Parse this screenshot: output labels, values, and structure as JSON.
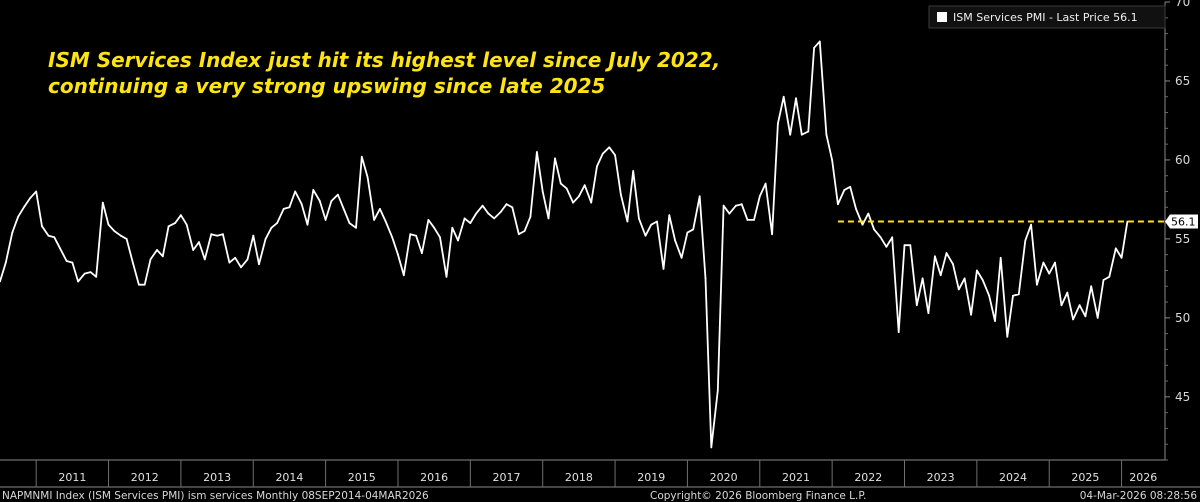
{
  "chart_data": {
    "type": "line",
    "annotation": [
      "ISM Services Index just hit its highest level since July 2022,",
      "continuing a very strong upswing since late 2025"
    ],
    "legend": {
      "label": "ISM Services PMI - Last Price 56.1",
      "position": "top-right"
    },
    "last_value_label": "56.1",
    "reference_line": {
      "value": 56.1,
      "from": 2022.08,
      "color": "#ffe414",
      "style": "dashed"
    },
    "ylim": [
      41,
      70
    ],
    "yticks": [
      45,
      50,
      55,
      60,
      65,
      70
    ],
    "xlim": [
      2010.5,
      2026.6
    ],
    "xticks": [
      "2011",
      "2012",
      "2013",
      "2014",
      "2015",
      "2016",
      "2017",
      "2018",
      "2019",
      "2020",
      "2021",
      "2022",
      "2023",
      "2024",
      "2025",
      "2026"
    ],
    "grid": false,
    "line_color": "#ffffff",
    "series": [
      {
        "values": [
          [
            2010.5,
            52.3
          ],
          [
            2010.58,
            53.5
          ],
          [
            2010.67,
            55.4
          ],
          [
            2010.75,
            56.4
          ],
          [
            2010.83,
            57.0
          ],
          [
            2010.92,
            57.6
          ],
          [
            2011.0,
            58.0
          ],
          [
            2011.08,
            55.8
          ],
          [
            2011.17,
            55.2
          ],
          [
            2011.25,
            55.1
          ],
          [
            2011.33,
            54.4
          ],
          [
            2011.42,
            53.6
          ],
          [
            2011.5,
            53.5
          ],
          [
            2011.58,
            52.3
          ],
          [
            2011.67,
            52.8
          ],
          [
            2011.75,
            52.9
          ],
          [
            2011.83,
            52.6
          ],
          [
            2011.92,
            57.3
          ],
          [
            2012.0,
            55.9
          ],
          [
            2012.08,
            55.5
          ],
          [
            2012.17,
            55.2
          ],
          [
            2012.25,
            55.0
          ],
          [
            2012.33,
            53.6
          ],
          [
            2012.42,
            52.1
          ],
          [
            2012.5,
            52.1
          ],
          [
            2012.58,
            53.7
          ],
          [
            2012.67,
            54.3
          ],
          [
            2012.75,
            53.9
          ],
          [
            2012.83,
            55.8
          ],
          [
            2012.92,
            56.0
          ],
          [
            2013.0,
            56.5
          ],
          [
            2013.08,
            55.9
          ],
          [
            2013.17,
            54.3
          ],
          [
            2013.25,
            54.8
          ],
          [
            2013.33,
            53.7
          ],
          [
            2013.42,
            55.3
          ],
          [
            2013.5,
            55.2
          ],
          [
            2013.58,
            55.3
          ],
          [
            2013.67,
            53.5
          ],
          [
            2013.75,
            53.8
          ],
          [
            2013.83,
            53.2
          ],
          [
            2013.92,
            53.7
          ],
          [
            2014.0,
            55.2
          ],
          [
            2014.08,
            53.4
          ],
          [
            2014.17,
            55.0
          ],
          [
            2014.25,
            55.7
          ],
          [
            2014.33,
            56.0
          ],
          [
            2014.42,
            56.9
          ],
          [
            2014.5,
            57.0
          ],
          [
            2014.58,
            58.0
          ],
          [
            2014.67,
            57.2
          ],
          [
            2014.75,
            55.9
          ],
          [
            2014.83,
            58.1
          ],
          [
            2014.92,
            57.4
          ],
          [
            2015.0,
            56.2
          ],
          [
            2015.08,
            57.4
          ],
          [
            2015.17,
            57.8
          ],
          [
            2015.25,
            56.9
          ],
          [
            2015.33,
            56.0
          ],
          [
            2015.42,
            55.7
          ],
          [
            2015.5,
            60.2
          ],
          [
            2015.58,
            58.9
          ],
          [
            2015.67,
            56.2
          ],
          [
            2015.75,
            56.9
          ],
          [
            2015.83,
            56.1
          ],
          [
            2015.92,
            55.1
          ],
          [
            2016.0,
            54.0
          ],
          [
            2016.08,
            52.7
          ],
          [
            2016.17,
            55.3
          ],
          [
            2016.25,
            55.2
          ],
          [
            2016.33,
            54.1
          ],
          [
            2016.42,
            56.2
          ],
          [
            2016.5,
            55.7
          ],
          [
            2016.58,
            55.1
          ],
          [
            2016.67,
            52.6
          ],
          [
            2016.75,
            55.7
          ],
          [
            2016.83,
            54.9
          ],
          [
            2016.92,
            56.3
          ],
          [
            2017.0,
            56.0
          ],
          [
            2017.08,
            56.6
          ],
          [
            2017.17,
            57.1
          ],
          [
            2017.25,
            56.6
          ],
          [
            2017.33,
            56.3
          ],
          [
            2017.42,
            56.7
          ],
          [
            2017.5,
            57.2
          ],
          [
            2017.58,
            57.0
          ],
          [
            2017.67,
            55.3
          ],
          [
            2017.75,
            55.5
          ],
          [
            2017.83,
            56.4
          ],
          [
            2017.92,
            60.5
          ],
          [
            2018.0,
            58.0
          ],
          [
            2018.08,
            56.3
          ],
          [
            2018.17,
            60.1
          ],
          [
            2018.25,
            58.5
          ],
          [
            2018.33,
            58.2
          ],
          [
            2018.42,
            57.3
          ],
          [
            2018.5,
            57.7
          ],
          [
            2018.58,
            58.4
          ],
          [
            2018.67,
            57.3
          ],
          [
            2018.75,
            59.6
          ],
          [
            2018.83,
            60.4
          ],
          [
            2018.92,
            60.8
          ],
          [
            2019.0,
            60.3
          ],
          [
            2019.08,
            57.8
          ],
          [
            2019.17,
            56.1
          ],
          [
            2019.25,
            59.3
          ],
          [
            2019.33,
            56.3
          ],
          [
            2019.42,
            55.2
          ],
          [
            2019.5,
            55.9
          ],
          [
            2019.58,
            56.1
          ],
          [
            2019.67,
            53.1
          ],
          [
            2019.75,
            56.5
          ],
          [
            2019.83,
            54.9
          ],
          [
            2019.92,
            53.8
          ],
          [
            2020.0,
            55.4
          ],
          [
            2020.08,
            55.6
          ],
          [
            2020.17,
            57.7
          ],
          [
            2020.25,
            52.5
          ],
          [
            2020.33,
            41.8
          ],
          [
            2020.42,
            45.4
          ],
          [
            2020.5,
            57.1
          ],
          [
            2020.58,
            56.6
          ],
          [
            2020.67,
            57.1
          ],
          [
            2020.75,
            57.2
          ],
          [
            2020.83,
            56.2
          ],
          [
            2020.92,
            56.2
          ],
          [
            2021.0,
            57.7
          ],
          [
            2021.08,
            58.5
          ],
          [
            2021.17,
            55.3
          ],
          [
            2021.25,
            62.3
          ],
          [
            2021.33,
            64.0
          ],
          [
            2021.42,
            61.6
          ],
          [
            2021.5,
            63.9
          ],
          [
            2021.58,
            61.6
          ],
          [
            2021.67,
            61.8
          ],
          [
            2021.75,
            67.1
          ],
          [
            2021.83,
            67.5
          ],
          [
            2021.92,
            61.6
          ],
          [
            2022.0,
            60.0
          ],
          [
            2022.08,
            57.2
          ],
          [
            2022.17,
            58.1
          ],
          [
            2022.25,
            58.3
          ],
          [
            2022.33,
            56.9
          ],
          [
            2022.42,
            55.9
          ],
          [
            2022.5,
            56.6
          ],
          [
            2022.58,
            55.6
          ],
          [
            2022.67,
            55.1
          ],
          [
            2022.75,
            54.5
          ],
          [
            2022.83,
            55.1
          ],
          [
            2022.92,
            49.1
          ],
          [
            2023.0,
            54.6
          ],
          [
            2023.08,
            54.6
          ],
          [
            2023.17,
            50.8
          ],
          [
            2023.25,
            52.5
          ],
          [
            2023.33,
            50.3
          ],
          [
            2023.42,
            53.9
          ],
          [
            2023.5,
            52.7
          ],
          [
            2023.58,
            54.1
          ],
          [
            2023.67,
            53.4
          ],
          [
            2023.75,
            51.8
          ],
          [
            2023.83,
            52.5
          ],
          [
            2023.92,
            50.2
          ],
          [
            2024.0,
            53.0
          ],
          [
            2024.08,
            52.4
          ],
          [
            2024.17,
            51.4
          ],
          [
            2024.25,
            49.8
          ],
          [
            2024.33,
            53.8
          ],
          [
            2024.42,
            48.8
          ],
          [
            2024.5,
            51.4
          ],
          [
            2024.58,
            51.5
          ],
          [
            2024.67,
            54.9
          ],
          [
            2024.75,
            55.9
          ],
          [
            2024.83,
            52.1
          ],
          [
            2024.92,
            53.5
          ],
          [
            2025.0,
            52.8
          ],
          [
            2025.08,
            53.5
          ],
          [
            2025.17,
            50.8
          ],
          [
            2025.25,
            51.6
          ],
          [
            2025.33,
            49.9
          ],
          [
            2025.42,
            50.8
          ],
          [
            2025.5,
            50.1
          ],
          [
            2025.58,
            52.0
          ],
          [
            2025.67,
            50.0
          ],
          [
            2025.75,
            52.4
          ],
          [
            2025.83,
            52.6
          ],
          [
            2025.92,
            54.4
          ],
          [
            2026.0,
            53.8
          ],
          [
            2026.08,
            56.1
          ]
        ]
      }
    ]
  },
  "footer": {
    "left": "NAPMNMI Index (ISM Services PMI) ism services Monthly 08SEP2014-04MAR2026",
    "center": "Copyright© 2026 Bloomberg Finance L.P.",
    "right": "04-Mar-2026 08:28:56"
  }
}
